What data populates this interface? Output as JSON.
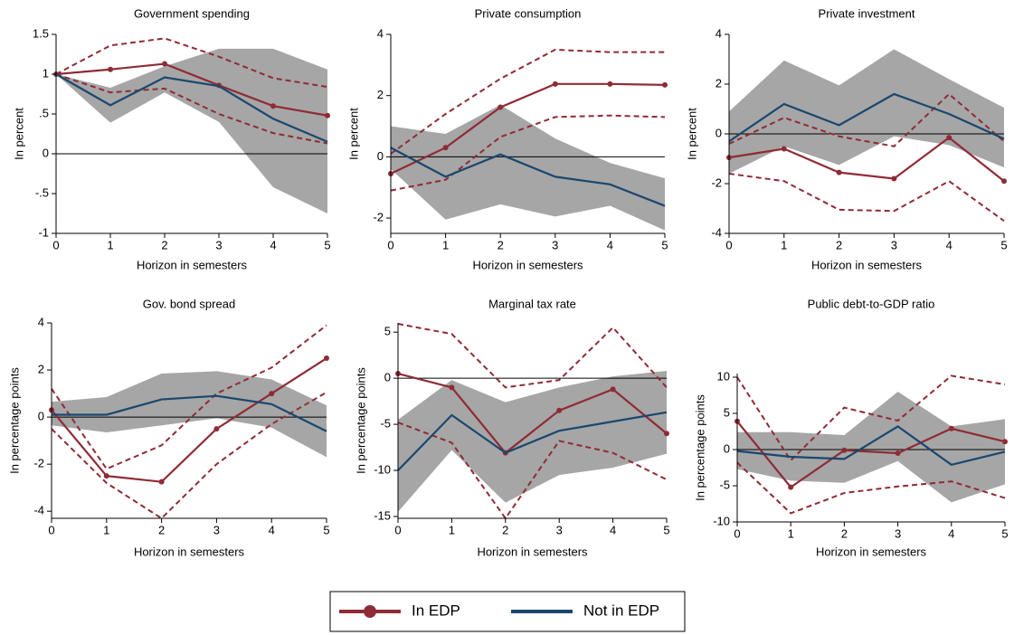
{
  "chart_data": [
    {
      "type": "line",
      "title": "Government spending",
      "xlabel": "Horizon in semesters",
      "ylabel": "In percent",
      "x": [
        0,
        1,
        2,
        3,
        4,
        5
      ],
      "xlim": [
        0,
        5
      ],
      "xticks": [
        0,
        1,
        2,
        3,
        4,
        5
      ],
      "ylim": [
        -1,
        1.5
      ],
      "yticks": [
        -1,
        {
          "value": -0.5,
          "label": "-.5"
        },
        0,
        {
          "value": 0.5,
          "label": ".5"
        },
        1,
        1.5
      ],
      "series": [
        {
          "values": [
            1,
            1.06,
            1.13,
            0.86,
            0.6,
            0.48
          ],
          "upper": [
            1,
            1.36,
            1.45,
            1.22,
            0.95,
            0.84
          ],
          "lower": [
            1,
            0.77,
            0.82,
            0.5,
            0.26,
            0.13
          ]
        },
        {
          "values": [
            1,
            0.61,
            0.96,
            0.85,
            0.44,
            0.15
          ],
          "upper": [
            1,
            0.83,
            1.1,
            1.32,
            1.32,
            1.06
          ],
          "lower": [
            1,
            0.39,
            0.77,
            0.4,
            -0.42,
            -0.75
          ]
        }
      ]
    },
    {
      "type": "line",
      "title": "Private consumption",
      "xlabel": "Horizon in semesters",
      "ylabel": "In percent",
      "x": [
        0,
        1,
        2,
        3,
        4,
        5
      ],
      "xlim": [
        0,
        5
      ],
      "xticks": [
        0,
        1,
        2,
        3,
        4,
        5
      ],
      "ylim": [
        -2.5,
        4
      ],
      "yticks": [
        -2,
        0,
        2,
        4
      ],
      "series": [
        {
          "values": [
            -0.55,
            0.3,
            1.62,
            2.38,
            2.38,
            2.35
          ],
          "upper": [
            0.1,
            1.4,
            2.55,
            3.5,
            3.42,
            3.42
          ],
          "lower": [
            -1.1,
            -0.75,
            0.65,
            1.3,
            1.35,
            1.3
          ]
        },
        {
          "values": [
            0.3,
            -0.65,
            0.08,
            -0.65,
            -0.9,
            -1.6
          ],
          "upper": [
            1.0,
            0.75,
            1.7,
            0.6,
            -0.2,
            -0.7
          ],
          "lower": [
            -0.4,
            -2.05,
            -1.55,
            -1.95,
            -1.6,
            -2.4
          ]
        }
      ]
    },
    {
      "type": "line",
      "title": "Private investment",
      "xlabel": "Horizon in semesters",
      "ylabel": "In percent",
      "x": [
        0,
        1,
        2,
        3,
        4,
        5
      ],
      "xlim": [
        0,
        5
      ],
      "xticks": [
        0,
        1,
        2,
        3,
        4,
        5
      ],
      "ylim": [
        -4,
        4
      ],
      "yticks": [
        -4,
        -2,
        0,
        2,
        4
      ],
      "series": [
        {
          "values": [
            -0.95,
            -0.6,
            -1.55,
            -1.8,
            -0.15,
            -1.9
          ],
          "upper": [
            -0.4,
            0.65,
            -0.1,
            -0.5,
            1.6,
            -0.3
          ],
          "lower": [
            -1.6,
            -1.9,
            -3.05,
            -3.1,
            -1.9,
            -3.5
          ]
        },
        {
          "values": [
            -0.3,
            1.2,
            0.35,
            1.6,
            0.8,
            -0.2
          ],
          "upper": [
            0.9,
            2.95,
            1.95,
            3.4,
            2.2,
            1.05
          ],
          "lower": [
            -1.6,
            -0.5,
            -1.25,
            -0.1,
            -0.45,
            -1.35
          ]
        }
      ]
    },
    {
      "type": "line",
      "title": "Gov. bond spread",
      "xlabel": "Horizon in semesters",
      "ylabel": "In percentage points",
      "x": [
        0,
        1,
        2,
        3,
        4,
        5
      ],
      "xlim": [
        0,
        5
      ],
      "xticks": [
        0,
        1,
        2,
        3,
        4,
        5
      ],
      "ylim": [
        -4.3,
        4
      ],
      "yticks": [
        -4,
        -2,
        0,
        2,
        4
      ],
      "series": [
        {
          "values": [
            0.3,
            -2.5,
            -2.75,
            -0.5,
            1.0,
            2.5
          ],
          "upper": [
            1.2,
            -2.2,
            -1.2,
            1.0,
            2.1,
            3.9
          ],
          "lower": [
            -0.5,
            -2.8,
            -4.3,
            -2.0,
            -0.3,
            1.05
          ]
        },
        {
          "values": [
            0.1,
            0.1,
            0.75,
            0.9,
            0.55,
            -0.6
          ],
          "upper": [
            0.65,
            0.85,
            1.85,
            1.95,
            1.6,
            0.5
          ],
          "lower": [
            -0.35,
            -0.65,
            -0.35,
            -0.05,
            -0.45,
            -1.7
          ]
        }
      ]
    },
    {
      "type": "line",
      "title": "Marginal tax rate",
      "xlabel": "Horizon in semesters",
      "ylabel": "In percentage points",
      "x": [
        0,
        1,
        2,
        3,
        4,
        5
      ],
      "xlim": [
        0,
        5
      ],
      "xticks": [
        0,
        1,
        2,
        3,
        4,
        5
      ],
      "ylim": [
        -15.2,
        6
      ],
      "yticks": [
        -15,
        -10,
        -5,
        0,
        5
      ],
      "series": [
        {
          "values": [
            0.5,
            -1.0,
            -8.1,
            -3.5,
            -1.2,
            -6.0
          ],
          "upper": [
            5.9,
            4.8,
            -1.0,
            -0.2,
            5.5,
            -1.0
          ],
          "lower": [
            -4.8,
            -7.0,
            -15.2,
            -6.8,
            -8.1,
            -11.0
          ]
        },
        {
          "values": [
            -10.0,
            -4.0,
            -8.1,
            -5.7,
            -4.7,
            -3.7
          ],
          "upper": [
            -4.5,
            -0.2,
            -2.6,
            -1.0,
            0.2,
            0.8
          ],
          "lower": [
            -14.5,
            -7.8,
            -13.5,
            -10.5,
            -9.7,
            -8.2
          ]
        }
      ]
    },
    {
      "type": "line",
      "title": "Public debt-to-GDP ratio",
      "xlabel": "Horizon in semesters",
      "ylabel": "In percentage points",
      "x": [
        0,
        1,
        2,
        3,
        4,
        5
      ],
      "xlim": [
        0,
        5
      ],
      "xticks": [
        0,
        1,
        2,
        3,
        4,
        5
      ],
      "ylim": [
        -10,
        10.5
      ],
      "yticks": [
        -10,
        -5,
        0,
        5,
        10
      ],
      "series": [
        {
          "values": [
            3.9,
            -5.2,
            -0.1,
            -0.5,
            2.9,
            1.1
          ],
          "upper": [
            10,
            -1.5,
            5.8,
            4.0,
            10.2,
            9.0
          ],
          "lower": [
            -1.8,
            -8.8,
            -6.0,
            -5.1,
            -4.4,
            -6.7
          ]
        },
        {
          "values": [
            -0.2,
            -1.0,
            -1.3,
            3.2,
            -2.1,
            -0.3
          ],
          "upper": [
            2.4,
            2.4,
            2.0,
            8.0,
            3.2,
            4.2
          ],
          "lower": [
            -2.7,
            -4.3,
            -4.6,
            -1.6,
            -7.3,
            -4.8
          ]
        }
      ]
    }
  ],
  "legend": {
    "position": "bottom",
    "entries": [
      {
        "name": "In EDP",
        "color": "#8f2b35",
        "marker": true,
        "band": "dashed"
      },
      {
        "name": "Not in EDP",
        "color": "#1a476f",
        "marker": false,
        "band": "shaded",
        "band_color": "#a6a6a6"
      }
    ]
  }
}
